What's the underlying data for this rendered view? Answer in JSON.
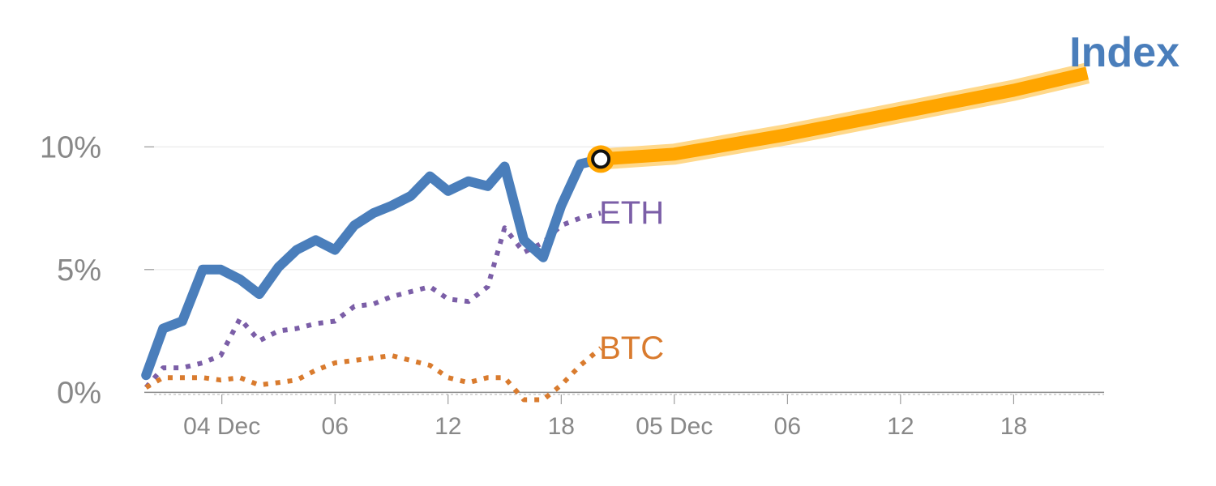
{
  "chart_data": {
    "type": "line",
    "title": "Index",
    "title_color": "#4a7ebb",
    "ylim": [
      -2,
      14
    ],
    "y_ticks": [
      0,
      5,
      10
    ],
    "y_tick_labels": [
      "0%",
      "5%",
      "10%"
    ],
    "x_range": [
      -6,
      78
    ],
    "x_ticks": [
      {
        "label": "04 Dec",
        "x": 0
      },
      {
        "label": "06",
        "x": 10
      },
      {
        "label": "12",
        "x": 20
      },
      {
        "label": "18",
        "x": 30
      },
      {
        "label": "05 Dec",
        "x": 40
      },
      {
        "label": "06",
        "x": 50
      },
      {
        "label": "12",
        "x": 60
      },
      {
        "label": "18",
        "x": 70
      }
    ],
    "grid": true,
    "series": [
      {
        "name": "ETH",
        "color": "#7b5ea7",
        "style": "dotted",
        "label_color": "#7b5ea7",
        "x": [
          -6.7,
          -5.2,
          -3.5,
          -1.7,
          -0.1,
          1.6,
          3.3,
          5.0,
          6.6,
          8.3,
          10.0,
          11.7,
          13.4,
          15.0,
          16.7,
          18.4,
          20.0,
          21.8,
          23.5,
          25.0,
          26.7,
          28.4,
          30.0,
          31.7,
          33.5
        ],
        "y": [
          0.2,
          1.0,
          1.0,
          1.2,
          1.5,
          3.0,
          2.1,
          2.5,
          2.6,
          2.8,
          2.9,
          3.5,
          3.6,
          3.9,
          4.1,
          4.3,
          3.8,
          3.7,
          4.3,
          6.7,
          5.7,
          6.1,
          6.8,
          7.1,
          7.3
        ]
      },
      {
        "name": "BTC",
        "color": "#d97b2e",
        "style": "dotted",
        "label_color": "#d97b2e",
        "x": [
          -6.7,
          -5.2,
          -3.5,
          -1.7,
          -0.1,
          1.6,
          3.3,
          5.0,
          6.6,
          8.3,
          10.0,
          11.7,
          13.4,
          15.0,
          16.7,
          18.4,
          20.0,
          21.8,
          23.5,
          25.0,
          26.7,
          28.4,
          30.0,
          31.7,
          33.5
        ],
        "y": [
          0.2,
          0.6,
          0.6,
          0.6,
          0.5,
          0.6,
          0.3,
          0.4,
          0.5,
          0.9,
          1.2,
          1.3,
          1.4,
          1.5,
          1.3,
          1.1,
          0.6,
          0.4,
          0.6,
          0.6,
          -0.3,
          -0.3,
          0.3,
          1.1,
          1.8
        ]
      },
      {
        "name": "",
        "color": "#4a7ebb",
        "style": "solid",
        "x": [
          -6.7,
          -5.2,
          -3.5,
          -1.7,
          -0.1,
          1.6,
          3.3,
          5.0,
          6.6,
          8.3,
          10.0,
          11.7,
          13.4,
          15.0,
          16.7,
          18.4,
          20.0,
          21.8,
          23.5,
          25.0,
          26.7,
          28.4,
          30.0,
          31.7,
          33.5
        ],
        "y": [
          0.7,
          2.6,
          2.9,
          5.0,
          5.0,
          4.6,
          4.0,
          5.1,
          5.8,
          6.2,
          5.8,
          6.8,
          7.3,
          7.6,
          8.0,
          8.8,
          8.2,
          8.6,
          8.4,
          9.2,
          6.2,
          5.5,
          7.6,
          9.3,
          9.5
        ]
      },
      {
        "name": "",
        "color": "#ffa500",
        "style": "projection",
        "x": [
          33.5,
          40.0,
          50.0,
          60.0,
          70.0,
          76.5
        ],
        "y": [
          9.5,
          9.7,
          10.5,
          11.4,
          12.3,
          13.0
        ]
      }
    ],
    "highlight_point": {
      "x": 33.5,
      "y": 9.5
    }
  }
}
